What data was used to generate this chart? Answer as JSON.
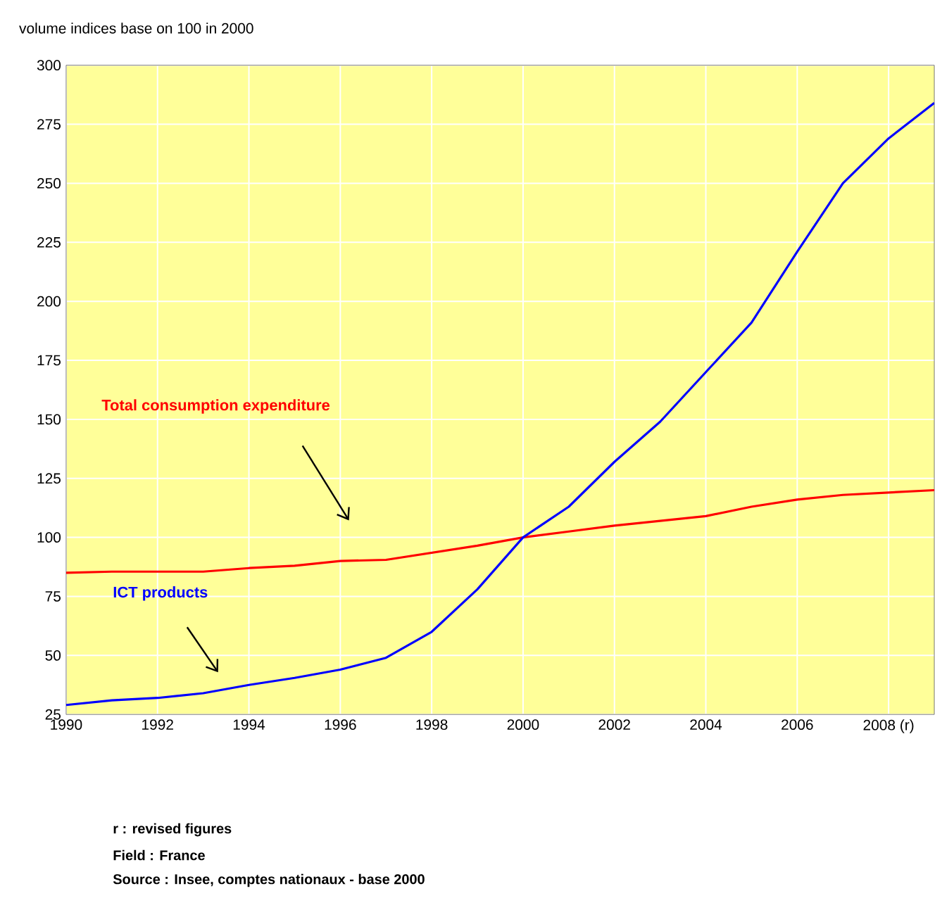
{
  "chart_data": {
    "type": "line",
    "title": "volume indices base on 100 in 2000",
    "x": [
      1990,
      1991,
      1992,
      1993,
      1994,
      1995,
      1996,
      1997,
      1998,
      1999,
      2000,
      2001,
      2002,
      2003,
      2004,
      2005,
      2006,
      2007,
      2008,
      2009
    ],
    "series": [
      {
        "name": "Total consumption expenditure",
        "color": "#ff0000",
        "values": [
          85,
          85.5,
          85.5,
          85.5,
          87,
          88,
          90,
          90.5,
          93.5,
          96.5,
          100,
          102.5,
          105,
          107,
          109,
          113,
          116,
          118,
          119,
          120
        ]
      },
      {
        "name": "ICT products",
        "color": "#0000ff",
        "values": [
          29,
          31,
          32,
          34,
          37.5,
          40.5,
          44,
          49,
          60,
          78,
          100,
          113,
          132,
          149,
          170,
          191,
          221,
          250,
          269,
          284
        ]
      }
    ],
    "xlim": [
      1990,
      2009
    ],
    "ylim": [
      25,
      300
    ],
    "xticks": [
      1990,
      1992,
      1994,
      1996,
      1998,
      2000,
      2002,
      2004,
      2006,
      {
        "value": 2008,
        "label": "2008 (r)"
      }
    ],
    "yticks": [
      25,
      50,
      75,
      100,
      125,
      150,
      175,
      200,
      225,
      250,
      275,
      300
    ],
    "grid": true,
    "marker": "none",
    "line_style": "solid",
    "annotations": [
      "r : revised figures",
      "Field : France",
      "Source : Insee, comptes nationaux - base 2000"
    ]
  }
}
